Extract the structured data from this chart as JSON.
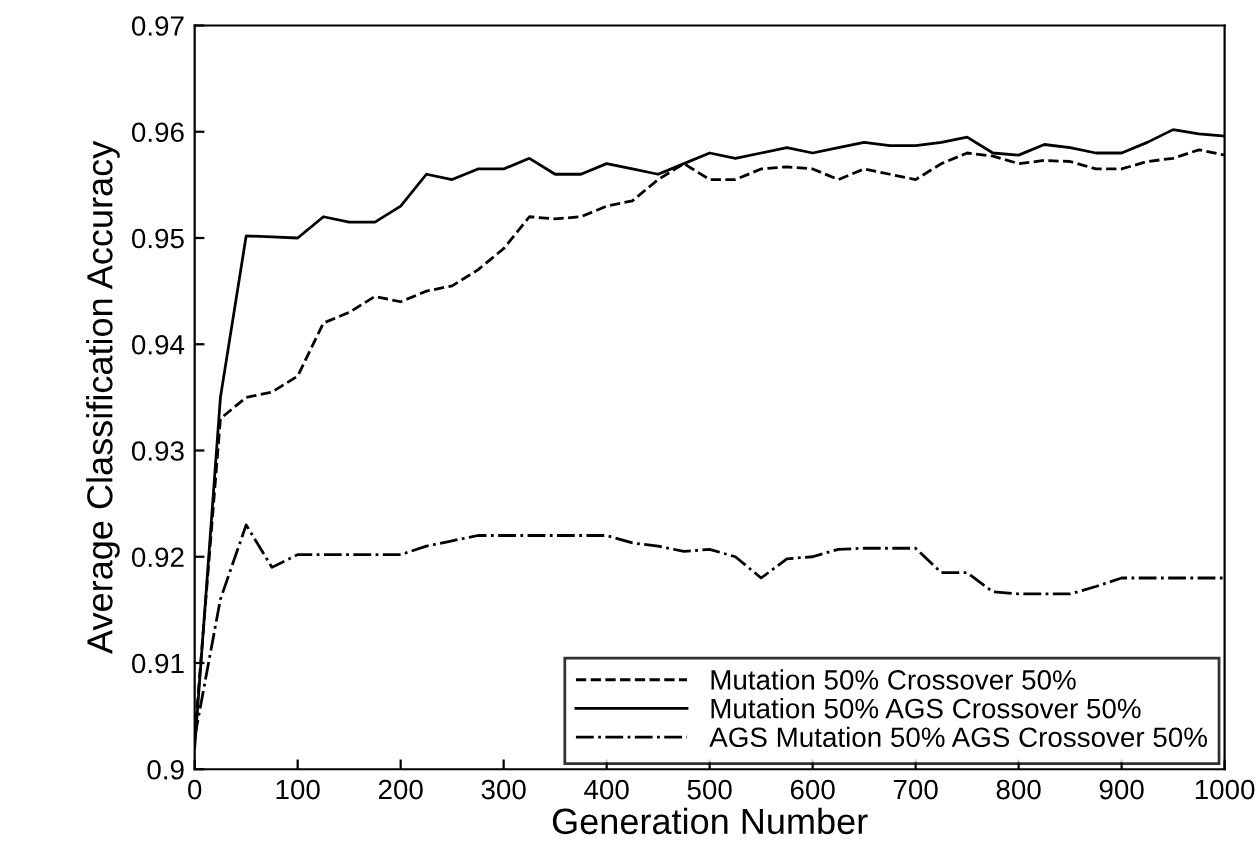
{
  "chart_data": {
    "type": "line",
    "xlabel": "Generation Number",
    "ylabel": "Average Classification Accuracy",
    "x": [
      0,
      25,
      50,
      75,
      100,
      125,
      150,
      175,
      200,
      225,
      250,
      275,
      300,
      325,
      350,
      375,
      400,
      425,
      450,
      475,
      500,
      525,
      550,
      575,
      600,
      625,
      650,
      675,
      700,
      725,
      750,
      775,
      800,
      825,
      850,
      875,
      900,
      925,
      950,
      975,
      1000
    ],
    "xlim": [
      0,
      1000
    ],
    "ylim": [
      0.9,
      0.97
    ],
    "xticks": [
      0,
      100,
      200,
      300,
      400,
      500,
      600,
      700,
      800,
      900,
      1000
    ],
    "yticks": [
      0.9,
      0.91,
      0.92,
      0.93,
      0.94,
      0.95,
      0.96,
      0.97
    ],
    "grid": false,
    "legend": "bottom right",
    "marker": "none",
    "series": [
      {
        "name": "Mutation 50% Crossover 50%",
        "color": "#000000",
        "line_style": "dashed",
        "values": [
          0.903,
          0.933,
          0.935,
          0.9355,
          0.937,
          0.942,
          0.943,
          0.9445,
          0.944,
          0.945,
          0.9455,
          0.947,
          0.949,
          0.952,
          0.9518,
          0.952,
          0.953,
          0.9535,
          0.9555,
          0.957,
          0.9555,
          0.9555,
          0.9565,
          0.9567,
          0.9565,
          0.9555,
          0.9565,
          0.956,
          0.9555,
          0.957,
          0.958,
          0.9577,
          0.957,
          0.9573,
          0.9572,
          0.9565,
          0.9565,
          0.9572,
          0.9575,
          0.9583,
          0.9578
        ]
      },
      {
        "name": "Mutation 50% AGS Crossover 50%",
        "color": "#000000",
        "line_style": "solid",
        "values": [
          0.902,
          0.935,
          0.9502,
          0.9501,
          0.95,
          0.952,
          0.9515,
          0.9515,
          0.953,
          0.956,
          0.9555,
          0.9565,
          0.9565,
          0.9575,
          0.956,
          0.956,
          0.957,
          0.9565,
          0.956,
          0.957,
          0.958,
          0.9575,
          0.958,
          0.9585,
          0.958,
          0.9585,
          0.959,
          0.9587,
          0.9587,
          0.959,
          0.9595,
          0.958,
          0.9578,
          0.9588,
          0.9585,
          0.958,
          0.958,
          0.959,
          0.9602,
          0.9598,
          0.9596
        ]
      },
      {
        "name": "AGS Mutation 50% AGS Crossover 50%",
        "color": "#000000",
        "line_style": "dashdot",
        "values": [
          0.903,
          0.916,
          0.923,
          0.919,
          0.9202,
          0.9202,
          0.9202,
          0.9202,
          0.9202,
          0.921,
          0.9215,
          0.922,
          0.922,
          0.922,
          0.922,
          0.922,
          0.922,
          0.9213,
          0.921,
          0.9205,
          0.9207,
          0.92,
          0.918,
          0.9198,
          0.92,
          0.9207,
          0.9208,
          0.9208,
          0.9208,
          0.9185,
          0.9185,
          0.9167,
          0.9165,
          0.9165,
          0.9165,
          0.9172,
          0.918,
          0.918,
          0.918,
          0.918,
          0.918
        ]
      }
    ]
  }
}
